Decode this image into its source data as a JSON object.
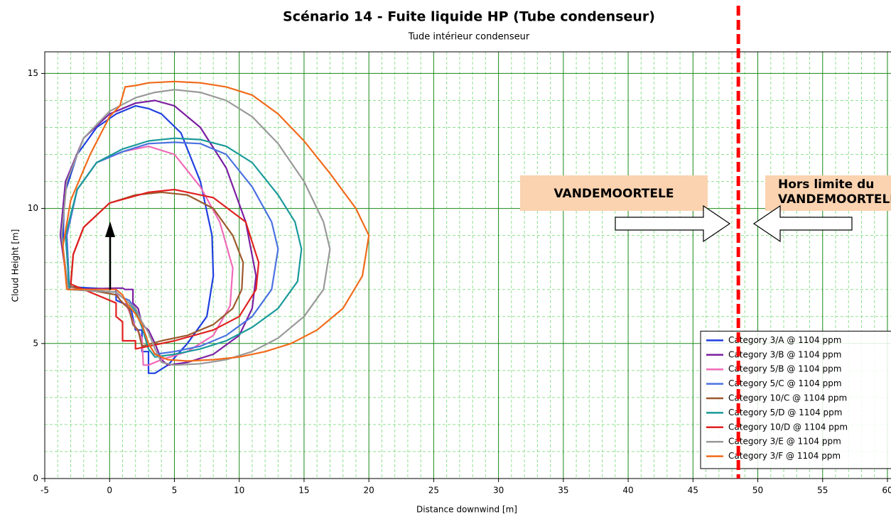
{
  "chart_data": {
    "type": "line",
    "title": "Scénario 14 - Fuite liquide HP (Tube condenseur)",
    "subtitle": "Tude intérieur condenseur",
    "x_label": "Distance downwind [m]",
    "y_label": "Cloud Height [m]",
    "xlim": [
      -5,
      60
    ],
    "ylim": [
      0,
      15.8
    ],
    "xticks": [
      -5,
      0,
      5,
      10,
      15,
      20,
      25,
      30,
      35,
      40,
      45,
      50,
      55,
      60
    ],
    "yticks": [
      0,
      5,
      10,
      15
    ],
    "grid": true,
    "minor_grid": true,
    "legend": "lower right",
    "annotations": [
      {
        "text": "VANDEMOORTELE"
      },
      {
        "text": "Hors limite du VANDEMOORTELE"
      }
    ],
    "vline": {
      "x": 48.5,
      "color": "#ff0000"
    },
    "series": [
      {
        "name": "Category 3/A @ 1104 ppm",
        "color": "#1f3fe0",
        "x": [
          -3.2,
          -3.6,
          -3.5,
          -2.5,
          -1,
          0.5,
          2,
          3,
          4,
          5.5,
          7,
          7.9,
          8,
          7.5,
          6,
          4.5,
          3.5,
          3,
          3,
          2.5,
          2.5,
          2,
          1.7,
          1.5,
          1,
          0.5,
          0.5,
          -3.2
        ],
        "values": [
          7.1,
          8.5,
          10.5,
          12,
          13,
          13.5,
          13.8,
          13.7,
          13.5,
          12.8,
          11,
          9,
          7.5,
          6,
          5,
          4.2,
          3.9,
          3.9,
          4.7,
          4.7,
          5.5,
          5.5,
          6.2,
          6.4,
          6.5,
          6.6,
          7.0,
          7.1
        ]
      },
      {
        "name": "Category 3/B @ 1104 ppm",
        "color": "#7b1fa2",
        "x": [
          -3.2,
          -3.8,
          -3.4,
          -2,
          0,
          2,
          3.5,
          5,
          7,
          9,
          10.5,
          11.3,
          11,
          10,
          8,
          6,
          4.5,
          4,
          3.5,
          3,
          2.5,
          2.2,
          1.8,
          1.8,
          1.2,
          1,
          0.5,
          -3.2
        ],
        "values": [
          7.0,
          9,
          11,
          12.6,
          13.5,
          13.9,
          14.0,
          13.8,
          13,
          11.5,
          9.5,
          7.5,
          6.3,
          5.3,
          4.6,
          4.3,
          4.2,
          4.4,
          5.0,
          5.5,
          5.7,
          6.3,
          6.5,
          7.0,
          7.0,
          7.05,
          7.05,
          7.0
        ]
      },
      {
        "name": "Category 5/B @ 1104 ppm",
        "color": "#f06ab8",
        "x": [
          -3.1,
          -3.3,
          -2.5,
          -1,
          1,
          3,
          5,
          7,
          8.5,
          9.5,
          9.3,
          8,
          6,
          4,
          3,
          2.6,
          2.5,
          2,
          1.5,
          1.3,
          0.8,
          0.5,
          -3.1
        ],
        "values": [
          7.0,
          9,
          10.7,
          11.7,
          12.1,
          12.3,
          12,
          10.8,
          9.5,
          7.8,
          6.4,
          5.3,
          4.7,
          4.4,
          4.2,
          4.2,
          5.2,
          5.6,
          6.2,
          6.4,
          6.6,
          6.9,
          7.0
        ]
      },
      {
        "name": "Category 5/C @ 1104 ppm",
        "color": "#4a72e0",
        "x": [
          -3.1,
          -3.3,
          -2.5,
          -1,
          1,
          3,
          5,
          7,
          9,
          11,
          12.5,
          13,
          12.5,
          11,
          9,
          7,
          5,
          3.5,
          3,
          2.5,
          2,
          1.5,
          1,
          0.5,
          -3.1
        ],
        "values": [
          7.0,
          9,
          10.7,
          11.7,
          12.1,
          12.4,
          12.45,
          12.4,
          12,
          10.8,
          9.5,
          8.5,
          7,
          6,
          5.3,
          4.9,
          4.7,
          4.6,
          5.0,
          5.7,
          6.3,
          6.6,
          6.7,
          6.9,
          7.0
        ]
      },
      {
        "name": "Category 10/C @ 1104 ppm",
        "color": "#9c5a2e",
        "x": [
          -3,
          -2.8,
          -2,
          0,
          2,
          4,
          6,
          8,
          9.5,
          10.3,
          10.2,
          9.5,
          8,
          6,
          4,
          2.5,
          2.2,
          1.8,
          1.5,
          1,
          0.5,
          -3
        ],
        "values": [
          7.1,
          8.3,
          9.3,
          10.2,
          10.5,
          10.6,
          10.5,
          10,
          9,
          8,
          7,
          6.3,
          5.7,
          5.3,
          5.1,
          4.9,
          5.5,
          5.7,
          6.3,
          6.5,
          6.8,
          7.1
        ]
      },
      {
        "name": "Category 5/D @ 1104 ppm",
        "color": "#1a9a9a",
        "x": [
          -3.1,
          -3.4,
          -2.5,
          -1,
          1,
          3,
          5,
          7,
          9,
          11,
          13,
          14.3,
          14.8,
          14.5,
          13,
          11,
          9,
          7,
          5,
          3.5,
          3,
          2.5,
          2,
          1.5,
          1,
          0.5,
          -3.1
        ],
        "values": [
          7.0,
          9,
          10.7,
          11.7,
          12.2,
          12.5,
          12.6,
          12.55,
          12.3,
          11.7,
          10.5,
          9.5,
          8.5,
          7.3,
          6.3,
          5.6,
          5.1,
          4.8,
          4.6,
          4.5,
          4.8,
          5.6,
          6.2,
          6.5,
          6.7,
          6.9,
          7.0
        ]
      },
      {
        "name": "Category 10/D @ 1104 ppm",
        "color": "#e0201f",
        "x": [
          -3,
          -2.8,
          -2,
          0,
          3,
          5,
          8,
          10.5,
          11.5,
          11.3,
          10,
          8,
          5,
          2,
          2,
          1,
          1,
          0.5,
          0.5,
          -3
        ],
        "values": [
          7.2,
          8.3,
          9.3,
          10.2,
          10.6,
          10.7,
          10.4,
          9.5,
          8,
          7,
          6,
          5.5,
          5.1,
          4.8,
          5.1,
          5.1,
          5.8,
          6,
          6.5,
          7.2
        ]
      },
      {
        "name": "Category 3/E @ 1104 ppm",
        "color": "#999999",
        "x": [
          -3.2,
          -3.7,
          -3.3,
          -2,
          0,
          2,
          3.5,
          5,
          7,
          9,
          11,
          13,
          15,
          16.5,
          17,
          16.5,
          15,
          13,
          11,
          9,
          7,
          5,
          4,
          3.5,
          3,
          2.5,
          2,
          1.5,
          1,
          0.5,
          -3.2
        ],
        "values": [
          7.0,
          9,
          11,
          12.6,
          13.6,
          14.1,
          14.3,
          14.4,
          14.3,
          14,
          13.4,
          12.4,
          11,
          9.5,
          8.5,
          7,
          6,
          5.2,
          4.7,
          4.4,
          4.25,
          4.2,
          4.3,
          4.8,
          5.4,
          5.8,
          6.3,
          6.5,
          6.7,
          6.9,
          7.0
        ]
      },
      {
        "name": "Category 3/F @ 1104 ppm",
        "color": "#f26a1b",
        "x": [
          -3.3,
          -3.6,
          -3,
          -1.5,
          0,
          0.8,
          1.2,
          2,
          3,
          5,
          7,
          9,
          11,
          13,
          15,
          17,
          19,
          20,
          19.5,
          18,
          16,
          14,
          12,
          10,
          8,
          6,
          4.5,
          3.5,
          3,
          2.5,
          2,
          1.3,
          1,
          0.5,
          -3.3
        ],
        "values": [
          7.0,
          8.6,
          10.3,
          12,
          13.4,
          13.8,
          14.5,
          14.55,
          14.65,
          14.7,
          14.65,
          14.5,
          14.2,
          13.5,
          12.5,
          11.3,
          10,
          9,
          7.5,
          6.3,
          5.5,
          5.0,
          4.7,
          4.5,
          4.4,
          4.35,
          4.4,
          4.6,
          5.0,
          5.7,
          6.1,
          6.5,
          6.8,
          7.0,
          7.0
        ]
      }
    ]
  }
}
